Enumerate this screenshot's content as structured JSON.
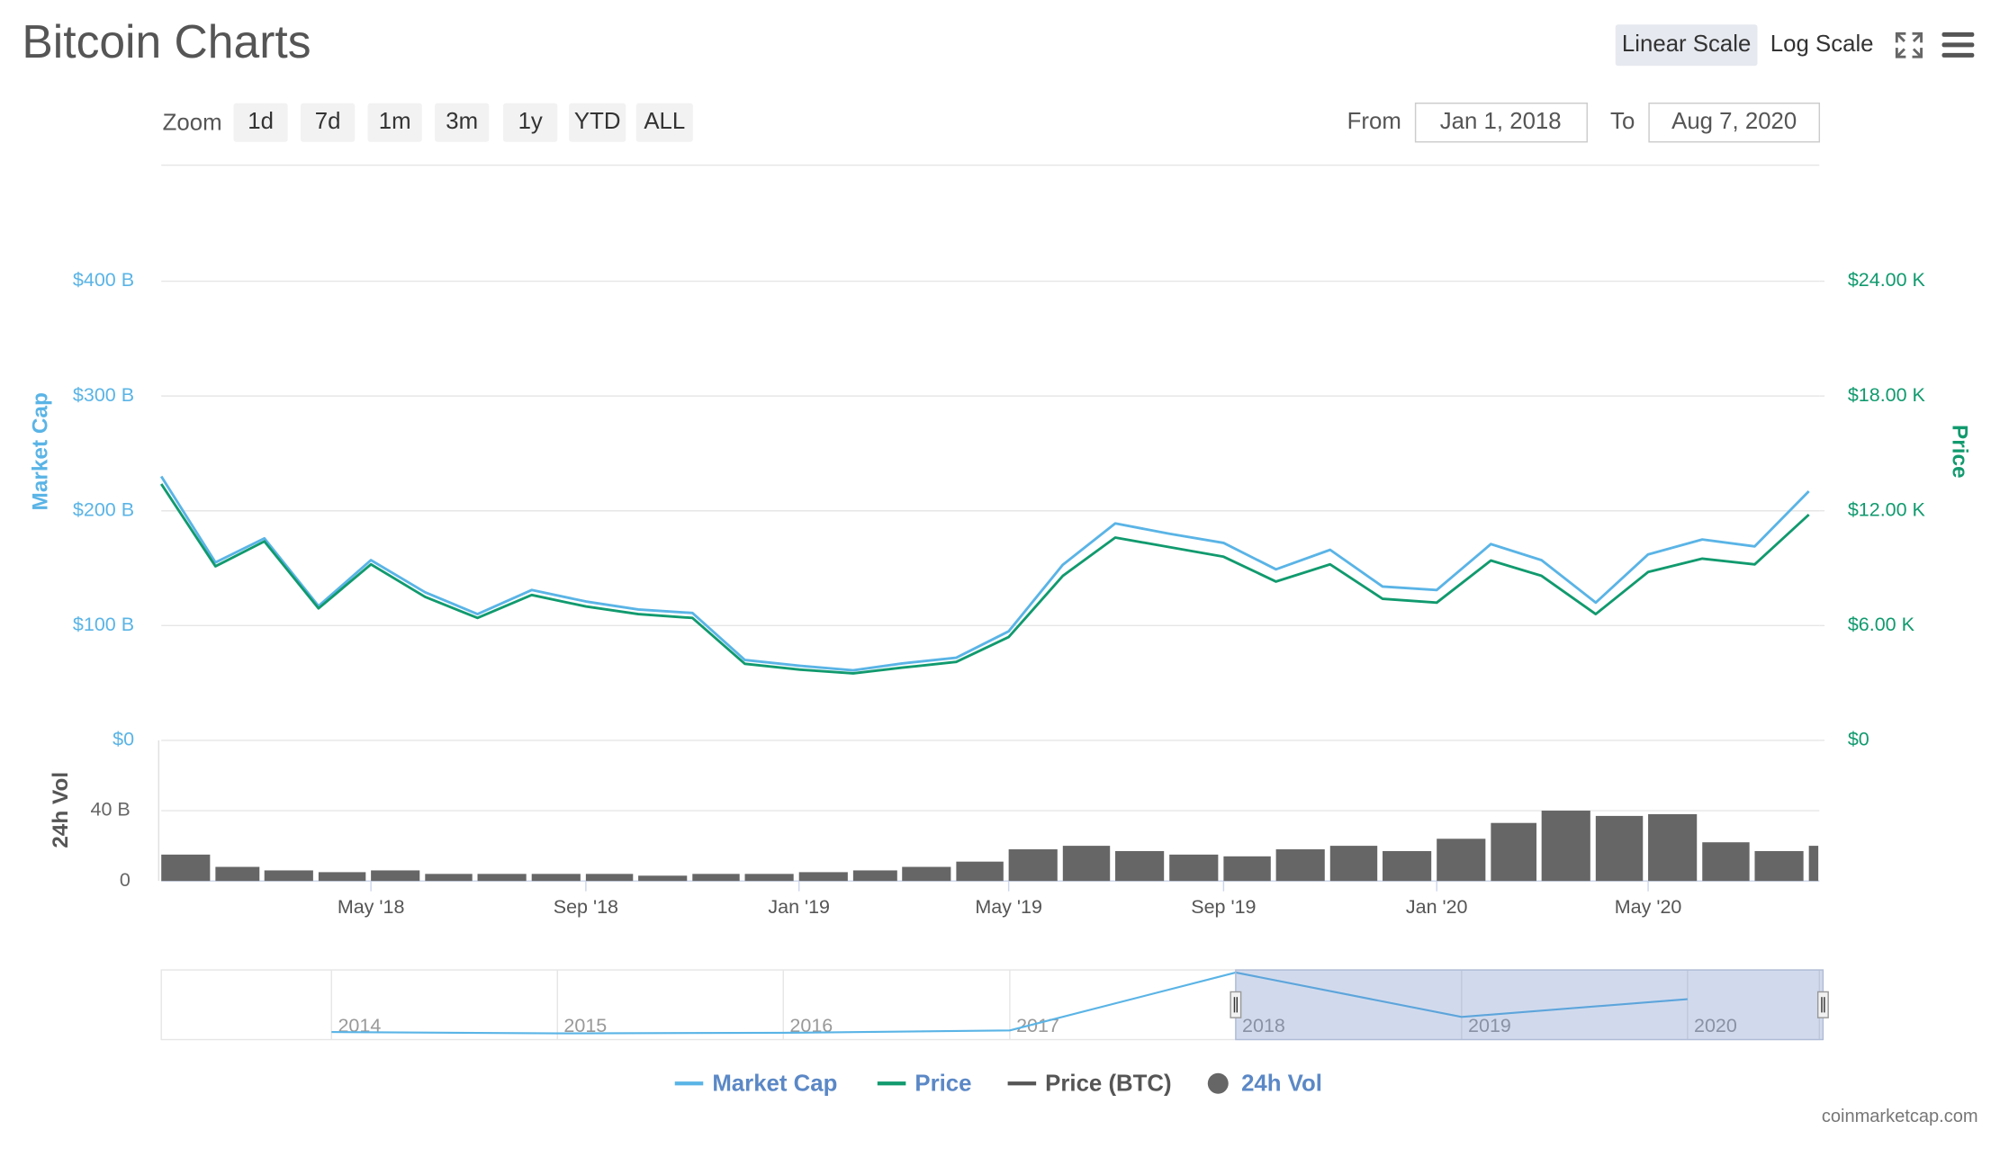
{
  "header": {
    "title": "Bitcoin Charts",
    "scale_buttons": [
      "Linear Scale",
      "Log Scale"
    ]
  },
  "toolbar": {
    "zoom_label": "Zoom",
    "zoom_buttons": [
      "1d",
      "7d",
      "1m",
      "3m",
      "1y",
      "YTD",
      "ALL"
    ],
    "from_label": "From",
    "from": "Jan 1, 2018",
    "to_label": "To",
    "to": "Aug 7, 2020"
  },
  "chart_data": [
    {
      "type": "line",
      "x": [
        "2018-01",
        "2018-02",
        "2018-03",
        "2018-04",
        "2018-05",
        "2018-06",
        "2018-07",
        "2018-08",
        "2018-09",
        "2018-10",
        "2018-11",
        "2018-12",
        "2019-01",
        "2019-02",
        "2019-03",
        "2019-04",
        "2019-05",
        "2019-06",
        "2019-07",
        "2019-08",
        "2019-09",
        "2019-10",
        "2019-11",
        "2019-12",
        "2020-01",
        "2020-02",
        "2020-03",
        "2020-04",
        "2020-05",
        "2020-06",
        "2020-07",
        "2020-08"
      ],
      "xlim": [
        "2018-01-01",
        "2020-08-07"
      ],
      "xticks": [
        {
          "value": "2018-05",
          "label": "May '18"
        },
        {
          "value": "2018-09",
          "label": "Sep '18"
        },
        {
          "value": "2019-01",
          "label": "Jan '19"
        },
        {
          "value": "2019-05",
          "label": "May '19"
        },
        {
          "value": "2019-09",
          "label": "Sep '19"
        },
        {
          "value": "2020-01",
          "label": "Jan '20"
        },
        {
          "value": "2020-05",
          "label": "May '20"
        }
      ],
      "ylabel": "Market Cap",
      "y2label": "Price",
      "ylim": [
        0,
        400
      ],
      "yticks": [
        {
          "value": 0,
          "label": "$0"
        },
        {
          "value": 100,
          "label": "$100 B"
        },
        {
          "value": 200,
          "label": "$200 B"
        },
        {
          "value": 300,
          "label": "$300 B"
        },
        {
          "value": 400,
          "label": "$400 B"
        }
      ],
      "y2lim": [
        0,
        24
      ],
      "y2ticks": [
        {
          "value": 0,
          "label": "$0"
        },
        {
          "value": 6,
          "label": "$6.00 K"
        },
        {
          "value": 12,
          "label": "$12.00 K"
        },
        {
          "value": 18,
          "label": "$18.00 K"
        },
        {
          "value": 24,
          "label": "$24.00 K"
        }
      ],
      "grid": true,
      "series": [
        {
          "name": "Market Cap",
          "color": "#5ab4e6",
          "values": [
            230,
            155,
            176,
            117,
            157,
            129,
            110,
            131,
            121,
            114,
            111,
            70,
            65,
            61,
            67,
            72,
            95,
            153,
            189,
            180,
            172,
            149,
            166,
            134,
            131,
            171,
            157,
            120,
            162,
            175,
            169,
            217
          ]
        },
        {
          "name": "Price",
          "color": "#119a6e",
          "axis": "y2",
          "values": [
            13.4,
            9.1,
            10.4,
            6.9,
            9.2,
            7.5,
            6.4,
            7.6,
            7.0,
            6.6,
            6.4,
            4.0,
            3.7,
            3.5,
            3.8,
            4.1,
            5.4,
            8.6,
            10.6,
            10.1,
            9.6,
            8.3,
            9.2,
            7.4,
            7.2,
            9.4,
            8.6,
            6.6,
            8.8,
            9.5,
            9.2,
            11.8
          ]
        },
        {
          "name": "Price (BTC)",
          "color": "#555555",
          "values": [
            null,
            null,
            null,
            null,
            null,
            null,
            null,
            null,
            null,
            null,
            null,
            null,
            null,
            null,
            null,
            null,
            null,
            null,
            null,
            null,
            null,
            null,
            null,
            null,
            null,
            null,
            null,
            null,
            null,
            null,
            null,
            null
          ]
        }
      ]
    },
    {
      "type": "bar",
      "x": [
        "2018-01",
        "2018-02",
        "2018-03",
        "2018-04",
        "2018-05",
        "2018-06",
        "2018-07",
        "2018-08",
        "2018-09",
        "2018-10",
        "2018-11",
        "2018-12",
        "2019-01",
        "2019-02",
        "2019-03",
        "2019-04",
        "2019-05",
        "2019-06",
        "2019-07",
        "2019-08",
        "2019-09",
        "2019-10",
        "2019-11",
        "2019-12",
        "2020-01",
        "2020-02",
        "2020-03",
        "2020-04",
        "2020-05",
        "2020-06",
        "2020-07",
        "2020-08"
      ],
      "xlim": [
        "2018-01-01",
        "2020-08-07"
      ],
      "ylabel": "24h Vol",
      "ylim": [
        0,
        80
      ],
      "yticks": [
        0,
        {
          "value": 40,
          "label": "40 B"
        }
      ],
      "series": [
        {
          "name": "24h Vol",
          "color": "#666666",
          "values": [
            15,
            8,
            6,
            5,
            6,
            4,
            4,
            4,
            4,
            3,
            4,
            4,
            5,
            6,
            8,
            11,
            18,
            20,
            17,
            15,
            14,
            18,
            20,
            17,
            24,
            33,
            40,
            37,
            38,
            22,
            17,
            20
          ]
        }
      ]
    },
    {
      "type": "line",
      "x": [
        "2014",
        "2015",
        "2016",
        "2017",
        "2018",
        "2019",
        "2020"
      ],
      "xlim": [
        "2013-04",
        "2020-08"
      ],
      "xticks": [
        "2014",
        "2015",
        "2016",
        "2017",
        "2018",
        "2019",
        "2020"
      ],
      "series": [
        {
          "color": "#5ab4e6",
          "values": [
            9,
            4,
            6,
            15,
            230,
            65,
            131
          ]
        }
      ]
    }
  ],
  "footer": {
    "credit": "coinmarketcap.com"
  }
}
